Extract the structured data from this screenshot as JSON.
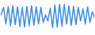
{
  "chart_data": {
    "type": "line",
    "values": [
      60,
      85,
      30,
      88,
      25,
      90,
      28,
      86,
      22,
      84,
      20,
      88,
      24,
      90,
      26,
      87,
      30,
      85,
      35,
      60,
      40,
      82,
      18,
      92,
      20,
      95,
      22,
      94,
      30,
      90,
      25,
      88,
      28,
      85,
      40,
      80,
      30,
      86,
      35,
      70,
      50
    ],
    "color": "#3a8fe0",
    "ylim": [
      0,
      100
    ],
    "grid": false,
    "tick_labels": false
  }
}
